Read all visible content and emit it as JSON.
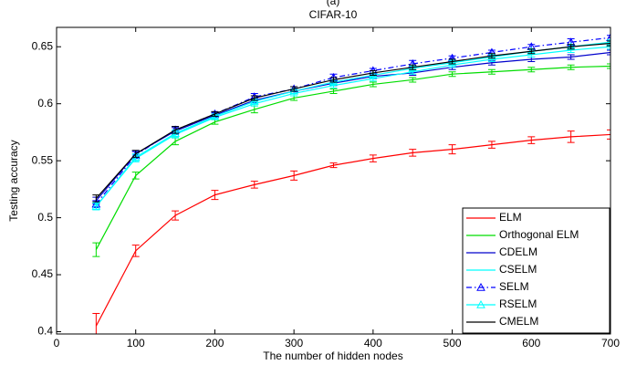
{
  "chart_data": {
    "type": "line",
    "supertitle": "(a)",
    "title": "CIFAR-10",
    "xlabel": "The number of hidden nodes",
    "ylabel": "Testing accuracy",
    "xlim": [
      0,
      700
    ],
    "xticks": [
      0,
      100,
      200,
      300,
      400,
      500,
      600,
      700
    ],
    "ylim": [
      0.398,
      0.667
    ],
    "yticks": [
      0.4,
      0.45,
      0.5,
      0.55,
      0.6,
      0.65
    ],
    "grid": false,
    "legend": "lower right",
    "x": [
      50,
      100,
      150,
      200,
      250,
      300,
      350,
      400,
      450,
      500,
      550,
      600,
      650,
      700
    ],
    "series": [
      {
        "name": "ELM",
        "color": "#ff0000",
        "linestyle": "solid",
        "marker": "none",
        "values": [
          0.405,
          0.471,
          0.502,
          0.52,
          0.529,
          0.537,
          0.546,
          0.552,
          0.557,
          0.56,
          0.564,
          0.568,
          0.571,
          0.573
        ],
        "errors": [
          0.011,
          0.005,
          0.004,
          0.004,
          0.003,
          0.004,
          0.002,
          0.003,
          0.003,
          0.004,
          0.003,
          0.003,
          0.005,
          0.004
        ]
      },
      {
        "name": "Orthogonal ELM",
        "color": "#00dd00",
        "linestyle": "solid",
        "marker": "none",
        "values": [
          0.472,
          0.537,
          0.567,
          0.584,
          0.595,
          0.605,
          0.611,
          0.617,
          0.621,
          0.626,
          0.628,
          0.63,
          0.632,
          0.633
        ],
        "errors": [
          0.006,
          0.003,
          0.003,
          0.002,
          0.003,
          0.002,
          0.002,
          0.002,
          0.002,
          0.002,
          0.002,
          0.002,
          0.002,
          0.002
        ]
      },
      {
        "name": "CDELM",
        "color": "#0000cc",
        "linestyle": "solid",
        "marker": "none",
        "values": [
          0.515,
          0.556,
          0.576,
          0.59,
          0.603,
          0.611,
          0.618,
          0.624,
          0.627,
          0.632,
          0.636,
          0.639,
          0.641,
          0.645
        ],
        "errors": [
          0.003,
          0.003,
          0.003,
          0.002,
          0.002,
          0.002,
          0.002,
          0.002,
          0.002,
          0.002,
          0.002,
          0.002,
          0.002,
          0.002
        ]
      },
      {
        "name": "CSELM",
        "color": "#00ffff",
        "linestyle": "solid",
        "marker": "none",
        "values": [
          0.51,
          0.552,
          0.573,
          0.588,
          0.6,
          0.609,
          0.616,
          0.622,
          0.628,
          0.634,
          0.639,
          0.643,
          0.647,
          0.65
        ],
        "errors": [
          0.003,
          0.003,
          0.003,
          0.002,
          0.002,
          0.002,
          0.002,
          0.002,
          0.002,
          0.002,
          0.002,
          0.002,
          0.002,
          0.002
        ]
      },
      {
        "name": "SELM",
        "color": "#0000ff",
        "linestyle": "dashdot",
        "marker": "triangle",
        "values": [
          0.512,
          0.555,
          0.577,
          0.591,
          0.606,
          0.613,
          0.623,
          0.629,
          0.635,
          0.64,
          0.645,
          0.65,
          0.654,
          0.658
        ],
        "errors": [
          0.003,
          0.003,
          0.003,
          0.002,
          0.003,
          0.002,
          0.003,
          0.002,
          0.003,
          0.002,
          0.002,
          0.002,
          0.003,
          0.002
        ]
      },
      {
        "name": "RSELM",
        "color": "#00ffff",
        "linestyle": "solid",
        "marker": "triangle",
        "values": [
          0.51,
          0.553,
          0.574,
          0.589,
          0.602,
          0.611,
          0.619,
          0.625,
          0.631,
          0.636,
          0.641,
          0.646,
          0.65,
          0.654
        ],
        "errors": [
          0.003,
          0.003,
          0.003,
          0.002,
          0.002,
          0.002,
          0.002,
          0.002,
          0.002,
          0.002,
          0.002,
          0.002,
          0.002,
          0.002
        ]
      },
      {
        "name": "CMELM",
        "color": "#000000",
        "linestyle": "solid",
        "marker": "none",
        "values": [
          0.517,
          0.556,
          0.577,
          0.591,
          0.605,
          0.613,
          0.621,
          0.627,
          0.632,
          0.637,
          0.642,
          0.646,
          0.65,
          0.653
        ],
        "errors": [
          0.003,
          0.003,
          0.003,
          0.002,
          0.002,
          0.002,
          0.002,
          0.002,
          0.002,
          0.002,
          0.002,
          0.002,
          0.002,
          0.002
        ]
      }
    ]
  }
}
